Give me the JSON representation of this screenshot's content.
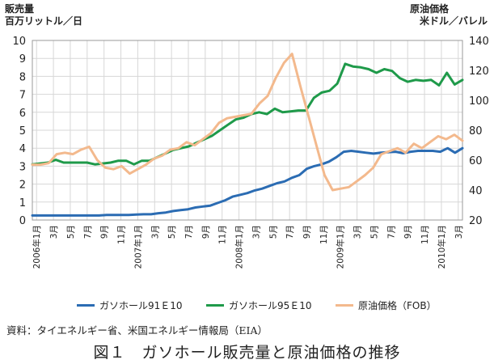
{
  "header": {
    "left_unit_line1": "販売量",
    "left_unit_line2": "百万リットル／日",
    "right_unit_line1": "原油価格",
    "right_unit_line2": "米ドル／バレル"
  },
  "source": "資料：タイエネルギー省、米国エネルギー情報局（EIA）",
  "caption": "図１　ガソホール販売量と原油価格の推移",
  "chart_data": {
    "type": "line",
    "x_tick_labels": [
      "2006年1月",
      "3月",
      "5月",
      "7月",
      "9月",
      "11月",
      "2007年1月",
      "3月",
      "5月",
      "7月",
      "9月",
      "11月",
      "2008年1月",
      "3月",
      "5月",
      "7月",
      "9月",
      "11月",
      "2009年1月",
      "3月",
      "5月",
      "7月",
      "9月",
      "11月",
      "2010年1月",
      "3月"
    ],
    "y_left": {
      "min": 0,
      "max": 10,
      "ticks": [
        0,
        1,
        2,
        3,
        4,
        5,
        6,
        7,
        8,
        9,
        10
      ]
    },
    "y_right": {
      "min": 20,
      "max": 140,
      "ticks": [
        20,
        40,
        60,
        80,
        100,
        120,
        140
      ]
    },
    "grid": true,
    "legend_position": "bottom",
    "x_start": "2006-01",
    "x_end": "2010-04",
    "series": [
      {
        "name": "ガソホール91Ｅ10",
        "axis": "left",
        "color": "#2b6cb3",
        "values": [
          0.25,
          0.25,
          0.25,
          0.25,
          0.25,
          0.25,
          0.25,
          0.25,
          0.25,
          0.25,
          0.28,
          0.28,
          0.28,
          0.28,
          0.3,
          0.32,
          0.32,
          0.38,
          0.42,
          0.5,
          0.55,
          0.6,
          0.7,
          0.75,
          0.8,
          0.95,
          1.1,
          1.3,
          1.4,
          1.5,
          1.65,
          1.75,
          1.9,
          2.05,
          2.15,
          2.35,
          2.5,
          2.85,
          3.0,
          3.1,
          3.25,
          3.5,
          3.8,
          3.85,
          3.8,
          3.75,
          3.7,
          3.75,
          3.78,
          3.8,
          3.72,
          3.8,
          3.85,
          3.85,
          3.85,
          3.8,
          4.0,
          3.75,
          4.0
        ]
      },
      {
        "name": "ガソホール95Ｅ10",
        "axis": "left",
        "color": "#1f9a4a",
        "values": [
          3.1,
          3.15,
          3.2,
          3.35,
          3.2,
          3.2,
          3.2,
          3.2,
          3.1,
          3.15,
          3.2,
          3.3,
          3.3,
          3.1,
          3.3,
          3.3,
          3.5,
          3.7,
          3.9,
          4.0,
          4.1,
          4.3,
          4.5,
          4.7,
          5.0,
          5.3,
          5.6,
          5.7,
          5.9,
          6.0,
          5.9,
          6.2,
          6.0,
          6.05,
          6.1,
          6.1,
          6.8,
          7.1,
          7.2,
          7.6,
          8.7,
          8.55,
          8.5,
          8.4,
          8.2,
          8.4,
          8.3,
          7.9,
          7.7,
          7.8,
          7.75,
          7.8,
          7.5,
          8.2,
          7.55,
          7.8
        ]
      },
      {
        "name": "原油価格（FOB）",
        "axis": "right",
        "color": "#f3b98d",
        "values": [
          57,
          57,
          58,
          64,
          65,
          64,
          67,
          69,
          60,
          55,
          54,
          56,
          51,
          54,
          57,
          61,
          63,
          67,
          68,
          72,
          70,
          74,
          78,
          85,
          88,
          89,
          90,
          91,
          98,
          103,
          115,
          125,
          131,
          110,
          90,
          70,
          50,
          40,
          41,
          42,
          46,
          50,
          55,
          64,
          66,
          68,
          65,
          71,
          68,
          72,
          76,
          74,
          77,
          73
        ]
      }
    ]
  }
}
